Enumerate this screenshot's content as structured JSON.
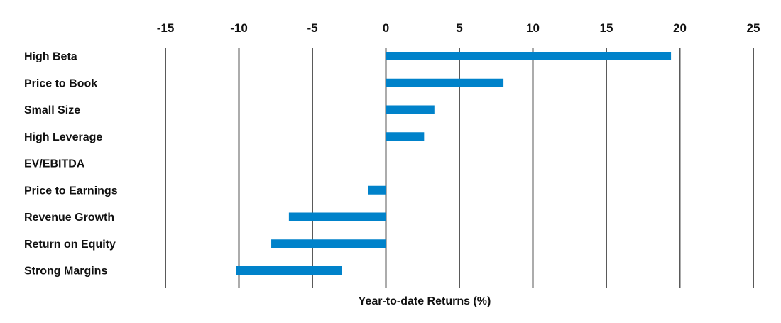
{
  "chart_data": {
    "type": "bar",
    "orientation": "horizontal",
    "categories": [
      "High Beta",
      "Price to Book",
      "Small Size",
      "High Leverage",
      "EV/EBITDA",
      "Price to Earnings",
      "Revenue Growth",
      "Return on Equity",
      "Strong Margins"
    ],
    "series": [
      {
        "name": "",
        "color": "#0082CA",
        "ranges": [
          [
            0,
            19.4
          ],
          [
            0,
            8.0
          ],
          [
            0,
            3.3
          ],
          [
            0,
            2.6
          ],
          [
            0,
            0
          ],
          [
            -1.2,
            0
          ],
          [
            -6.6,
            0
          ],
          [
            -7.8,
            0
          ],
          [
            -10.2,
            -3.0
          ]
        ]
      }
    ],
    "xlim": [
      -15,
      25
    ],
    "x_ticks": [
      -15,
      -10,
      -5,
      0,
      5,
      10,
      15,
      20,
      25
    ],
    "tick_position": "top",
    "xlabel": "Year-to-date Returns (%)",
    "ylabel": "",
    "title": "",
    "grid": "vertical",
    "legend": "none",
    "colors": {
      "bar": "#0082CA",
      "grid": "#5a5a5a",
      "text": "#111111"
    }
  }
}
